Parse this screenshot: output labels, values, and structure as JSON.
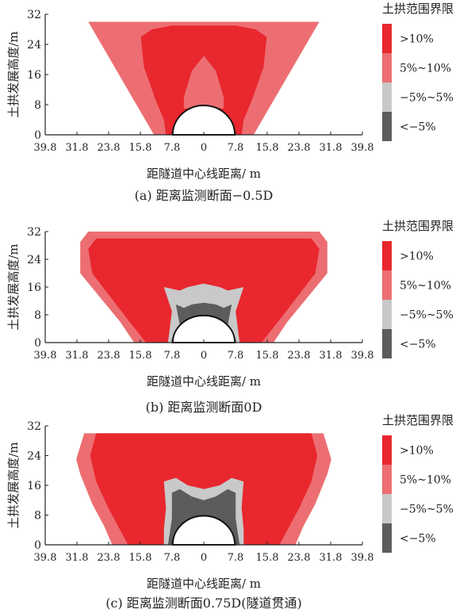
{
  "chart_data": [
    {
      "type": "area",
      "panel": "a",
      "caption": "(a) 距离监测断面−0.5D",
      "xlabel": "距隧道中心线距离/ m",
      "ylabel": "土拱发展高度/m",
      "x_ticks": [
        "39.8",
        "31.8",
        "23.8",
        "15.8",
        "7.8",
        "0",
        "7.8",
        "15.8",
        "23.8",
        "31.8",
        "39.8"
      ],
      "y_ticks": [
        "0",
        "8",
        "16",
        "24",
        "32"
      ],
      "xlim": [
        -39.8,
        39.8
      ],
      "ylim": [
        0,
        32
      ],
      "tunnel_radius": 7.8,
      "legend_title": "土拱范围界限",
      "legend": [
        {
          "label": ">10%",
          "color": "#e8272e"
        },
        {
          "label": "5%~10%",
          "color": "#ec6e72"
        },
        {
          "label": "−5%~5%",
          "color": "#c9c9c9"
        },
        {
          "label": "<−5%",
          "color": "#5c5c5c"
        }
      ],
      "regions": [
        {
          "level": "5%~10%",
          "color": "#ec6e72",
          "polygon": [
            [
              -29,
              30
            ],
            [
              29,
              30
            ],
            [
              12.5,
              0
            ],
            [
              -12.5,
              0
            ]
          ]
        },
        {
          "level": ">10%",
          "color": "#e8272e",
          "polygon": [
            [
              -15.8,
              26
            ],
            [
              -13,
              28
            ],
            [
              -8,
              29
            ],
            [
              0,
              29
            ],
            [
              8,
              29
            ],
            [
              13,
              28
            ],
            [
              15.8,
              26
            ],
            [
              15,
              18
            ],
            [
              12,
              9
            ],
            [
              10,
              4
            ],
            [
              9.5,
              0
            ],
            [
              -9.5,
              0
            ],
            [
              -10,
              4
            ],
            [
              -12,
              9
            ],
            [
              -15,
              18
            ]
          ]
        },
        {
          "level": "5%~10%",
          "color": "#ec6e72",
          "polygon": [
            [
              -5,
              10
            ],
            [
              -3,
              17
            ],
            [
              0,
              21
            ],
            [
              3,
              17
            ],
            [
              5,
              10
            ],
            [
              5,
              7
            ],
            [
              -5,
              7
            ]
          ]
        }
      ]
    },
    {
      "type": "area",
      "panel": "b",
      "caption": "(b) 距离监测断面0D",
      "xlabel": "距隧道中心线距离/ m",
      "ylabel": "土拱发展高度/m",
      "x_ticks": [
        "39.8",
        "31.8",
        "23.8",
        "15.8",
        "7.8",
        "0",
        "7.8",
        "15.8",
        "23.8",
        "31.8",
        "39.8"
      ],
      "y_ticks": [
        "0",
        "8",
        "16",
        "24",
        "32"
      ],
      "xlim": [
        -39.8,
        39.8
      ],
      "ylim": [
        0,
        32
      ],
      "tunnel_radius": 7.8,
      "legend_title": "土拱范围界限",
      "legend": [
        {
          "label": ">10%",
          "color": "#e8272e"
        },
        {
          "label": "5%~10%",
          "color": "#ec6e72"
        },
        {
          "label": "−5%~5%",
          "color": "#c9c9c9"
        },
        {
          "label": "<−5%",
          "color": "#5c5c5c"
        }
      ],
      "regions": [
        {
          "level": "5%~10%",
          "color": "#ec6e72",
          "polygon": [
            [
              -29,
              32
            ],
            [
              29,
              32
            ],
            [
              31,
              29
            ],
            [
              31,
              20
            ],
            [
              26,
              13
            ],
            [
              21,
              6
            ],
            [
              17.5,
              0
            ],
            [
              -17.5,
              0
            ],
            [
              -21,
              6
            ],
            [
              -26,
              13
            ],
            [
              -31,
              20
            ],
            [
              -31,
              29
            ]
          ]
        },
        {
          "level": ">10%",
          "color": "#e8272e",
          "polygon": [
            [
              -27,
              30
            ],
            [
              27,
              30
            ],
            [
              29,
              27
            ],
            [
              28,
              20
            ],
            [
              24,
              14
            ],
            [
              20,
              8
            ],
            [
              14.5,
              0
            ],
            [
              -14.5,
              0
            ],
            [
              -20,
              8
            ],
            [
              -24,
              14
            ],
            [
              -28,
              20
            ],
            [
              -29,
              27
            ]
          ]
        },
        {
          "level": "−5%~5%",
          "color": "#c9c9c9",
          "polygon": [
            [
              -10,
              16
            ],
            [
              -6,
              15
            ],
            [
              -4,
              16
            ],
            [
              0,
              17
            ],
            [
              4,
              16
            ],
            [
              6,
              15
            ],
            [
              10,
              16
            ],
            [
              8,
              9
            ],
            [
              9,
              0
            ],
            [
              -9,
              0
            ],
            [
              -8,
              9
            ]
          ]
        },
        {
          "level": "<−5%",
          "color": "#5c5c5c",
          "polygon": [
            [
              -7,
              11
            ],
            [
              -5,
              10
            ],
            [
              -3,
              11
            ],
            [
              0,
              11.5
            ],
            [
              3,
              11
            ],
            [
              5,
              10
            ],
            [
              7,
              11
            ],
            [
              6,
              5
            ],
            [
              7,
              1
            ],
            [
              -7,
              1
            ],
            [
              -6,
              5
            ]
          ]
        }
      ]
    },
    {
      "type": "area",
      "panel": "c",
      "caption": "(c) 距离监测断面0.75D(隧道贯通)",
      "xlabel": "距隧道中心线距离/ m",
      "ylabel": "土拱发展高度/m",
      "x_ticks": [
        "39.8",
        "31.8",
        "23.8",
        "15.8",
        "7.8",
        "0",
        "7.8",
        "15.8",
        "23.8",
        "31.8",
        "39.8"
      ],
      "y_ticks": [
        "0",
        "8",
        "16",
        "24",
        "32"
      ],
      "xlim": [
        -39.8,
        39.8
      ],
      "ylim": [
        0,
        32
      ],
      "tunnel_radius": 7.8,
      "legend_title": "土拱范围界限",
      "legend": [
        {
          "label": ">10%",
          "color": "#e8272e"
        },
        {
          "label": "5%~10%",
          "color": "#ec6e72"
        },
        {
          "label": "−5%~5%",
          "color": "#c9c9c9"
        },
        {
          "label": "<−5%",
          "color": "#5c5c5c"
        }
      ],
      "regions": [
        {
          "level": "5%~10%",
          "color": "#ec6e72",
          "polygon": [
            [
              -30,
              30
            ],
            [
              30,
              30
            ],
            [
              32,
              23
            ],
            [
              31,
              19
            ],
            [
              28,
              11
            ],
            [
              25,
              5
            ],
            [
              23,
              0
            ],
            [
              -23,
              0
            ],
            [
              -25,
              5
            ],
            [
              -28,
              11
            ],
            [
              -31,
              19
            ],
            [
              -32,
              23
            ]
          ]
        },
        {
          "level": ">10%",
          "color": "#e8272e",
          "polygon": [
            [
              -27,
              30
            ],
            [
              27,
              30
            ],
            [
              28.5,
              24
            ],
            [
              27,
              17
            ],
            [
              24,
              10
            ],
            [
              21,
              4
            ],
            [
              19,
              0
            ],
            [
              -19,
              0
            ],
            [
              -21,
              4
            ],
            [
              -24,
              10
            ],
            [
              -27,
              17
            ],
            [
              -28.5,
              24
            ]
          ]
        },
        {
          "level": "−5%~5%",
          "color": "#c9c9c9",
          "polygon": [
            [
              -10,
              17
            ],
            [
              -7,
              18
            ],
            [
              -4,
              16
            ],
            [
              0,
              15
            ],
            [
              4,
              16
            ],
            [
              7,
              18
            ],
            [
              10,
              17
            ],
            [
              9.5,
              10
            ],
            [
              10,
              4
            ],
            [
              10,
              0
            ],
            [
              -10,
              0
            ],
            [
              -10,
              4
            ],
            [
              -9.5,
              10
            ]
          ]
        },
        {
          "level": "<−5%",
          "color": "#5c5c5c",
          "polygon": [
            [
              -8,
              14
            ],
            [
              -6,
              15
            ],
            [
              -3,
              13
            ],
            [
              0,
              12
            ],
            [
              3,
              13
            ],
            [
              6,
              15
            ],
            [
              8,
              14
            ],
            [
              8,
              7
            ],
            [
              9,
              0
            ],
            [
              -9,
              0
            ],
            [
              -8,
              7
            ]
          ]
        }
      ]
    }
  ]
}
